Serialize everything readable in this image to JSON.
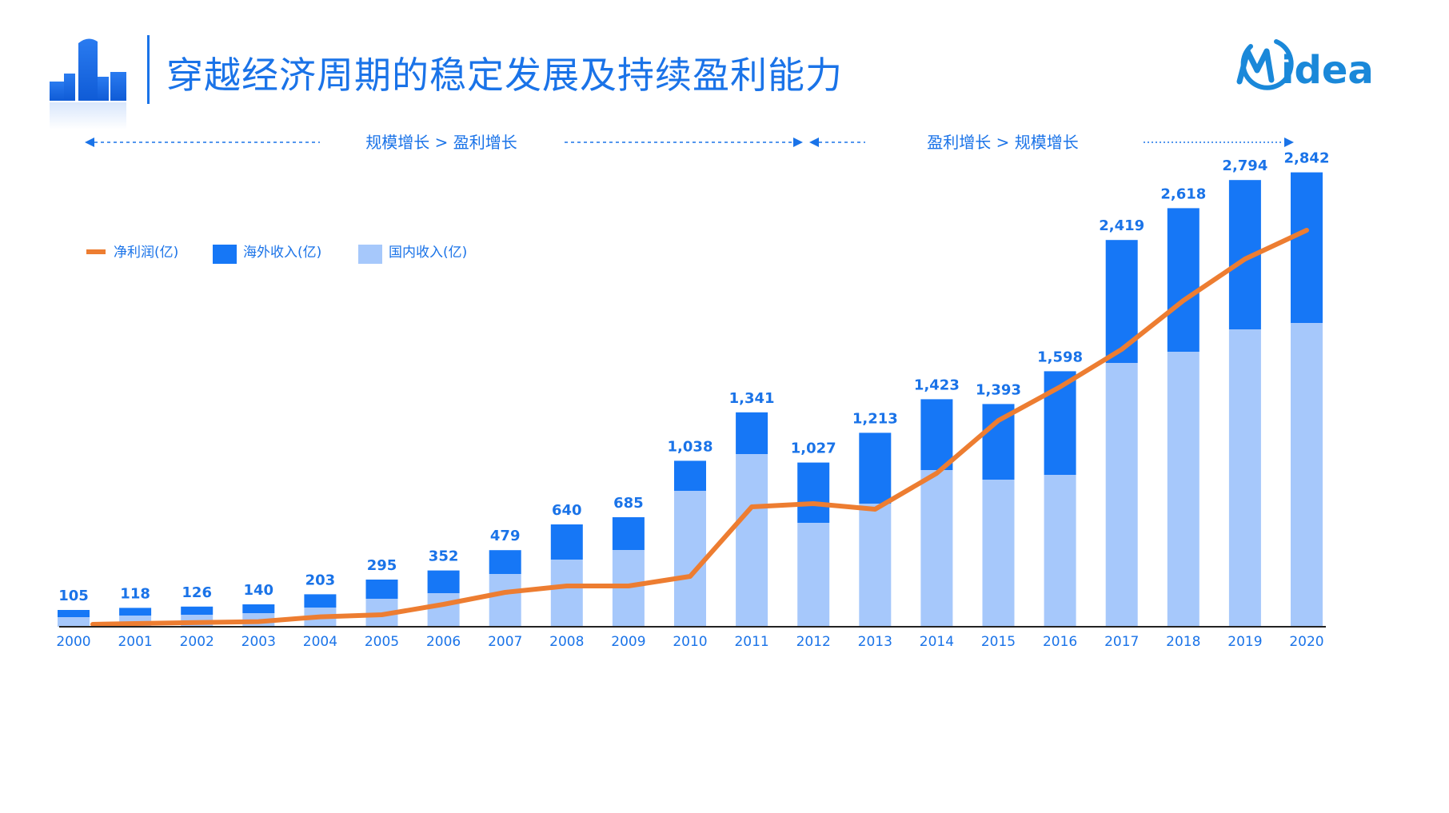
{
  "slide": {
    "title": "穿越经济周期的稳定发展及持续盈利能力",
    "logo_text": "Midea"
  },
  "phases": [
    {
      "label": "规模增长 > 盈利增长"
    },
    {
      "label": "盈利增长 > 规模增长"
    }
  ],
  "chart_data": {
    "type": "bar",
    "stacked": true,
    "categories": [
      "2000",
      "2001",
      "2002",
      "2003",
      "2004",
      "2005",
      "2006",
      "2007",
      "2008",
      "2009",
      "2010",
      "2011",
      "2012",
      "2013",
      "2014",
      "2015",
      "2016",
      "2017",
      "2018",
      "2019",
      "2020"
    ],
    "totals": [
      105,
      118,
      126,
      140,
      203,
      295,
      352,
      479,
      640,
      685,
      1038,
      1341,
      1027,
      1213,
      1423,
      1393,
      1598,
      2419,
      2618,
      2794,
      2842
    ],
    "total_labels": [
      "105",
      "118",
      "126",
      "140",
      "203",
      "295",
      "352",
      "479",
      "640",
      "685",
      "1,038",
      "1,341",
      "1,027",
      "1,213",
      "1,423",
      "1,393",
      "1,598",
      "2,419",
      "2,618",
      "2,794",
      "2,842"
    ],
    "series": [
      {
        "name": "国内收入(亿)",
        "type": "bar",
        "color": "#a6c8fb",
        "values": [
          60,
          70,
          75,
          85,
          120,
          175,
          210,
          330,
          420,
          480,
          850,
          1080,
          650,
          770,
          980,
          920,
          950,
          1650,
          1720,
          1860,
          1900
        ]
      },
      {
        "name": "海外收入(亿)",
        "type": "bar",
        "color": "#1677f6",
        "values": [
          45,
          48,
          51,
          55,
          83,
          120,
          142,
          149,
          220,
          205,
          188,
          261,
          377,
          443,
          443,
          473,
          648,
          769,
          898,
          934,
          942
        ]
      },
      {
        "name": "净利润(亿)",
        "type": "line",
        "color": "#ed7d31",
        "values": [
          15,
          20,
          26,
          32,
          62,
          75,
          140,
          215,
          255,
          255,
          315,
          750,
          770,
          735,
          960,
          1290,
          1500,
          1735,
          2040,
          2300,
          2480
        ]
      }
    ],
    "ylim": [
      0,
      3000
    ],
    "legend": "top-left",
    "grid": false
  },
  "colors": {
    "accent": "#1a73e8",
    "domestic": "#a6c8fb",
    "overseas": "#1677f6",
    "profit": "#ed7d31"
  }
}
